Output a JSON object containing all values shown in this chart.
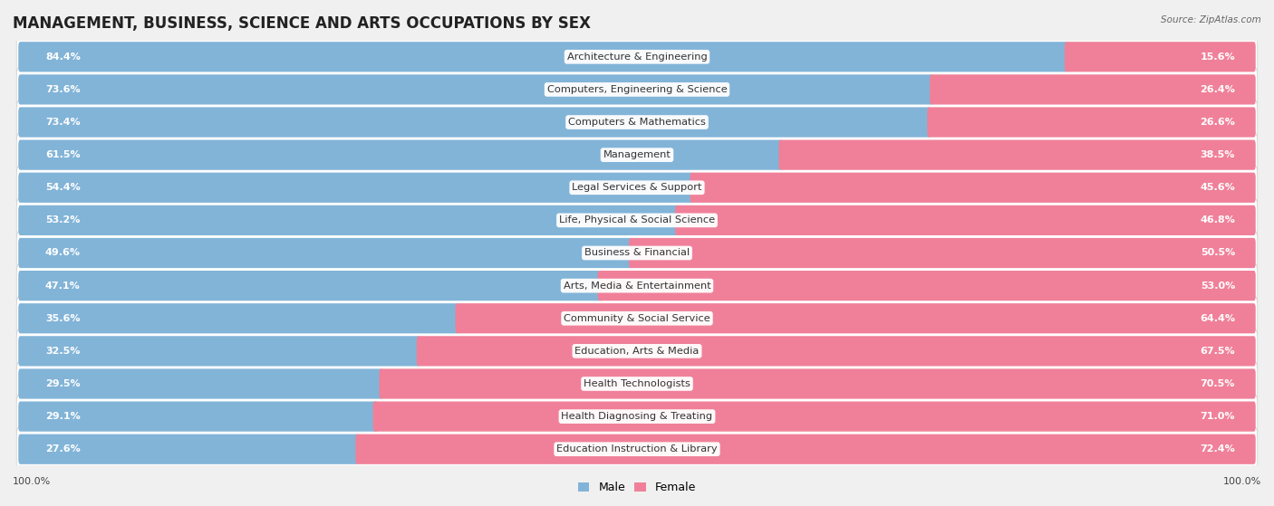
{
  "title": "MANAGEMENT, BUSINESS, SCIENCE AND ARTS OCCUPATIONS BY SEX",
  "source": "Source: ZipAtlas.com",
  "categories": [
    "Architecture & Engineering",
    "Computers, Engineering & Science",
    "Computers & Mathematics",
    "Management",
    "Legal Services & Support",
    "Life, Physical & Social Science",
    "Business & Financial",
    "Arts, Media & Entertainment",
    "Community & Social Service",
    "Education, Arts & Media",
    "Health Technologists",
    "Health Diagnosing & Treating",
    "Education Instruction & Library"
  ],
  "male_pct": [
    84.4,
    73.6,
    73.4,
    61.5,
    54.4,
    53.2,
    49.6,
    47.1,
    35.6,
    32.5,
    29.5,
    29.1,
    27.6
  ],
  "female_pct": [
    15.6,
    26.4,
    26.6,
    38.5,
    45.6,
    46.8,
    50.5,
    53.0,
    64.4,
    67.5,
    70.5,
    71.0,
    72.4
  ],
  "male_color": "#82b4d8",
  "female_color": "#f08099",
  "bg_color": "#f0f0f0",
  "bar_bg_color": "#ffffff",
  "row_bg_color": "#e8e8e8",
  "bar_height": 0.62,
  "title_fontsize": 12,
  "label_fontsize": 8.2,
  "pct_fontsize": 8.0,
  "axis_min": 0,
  "axis_max": 100
}
